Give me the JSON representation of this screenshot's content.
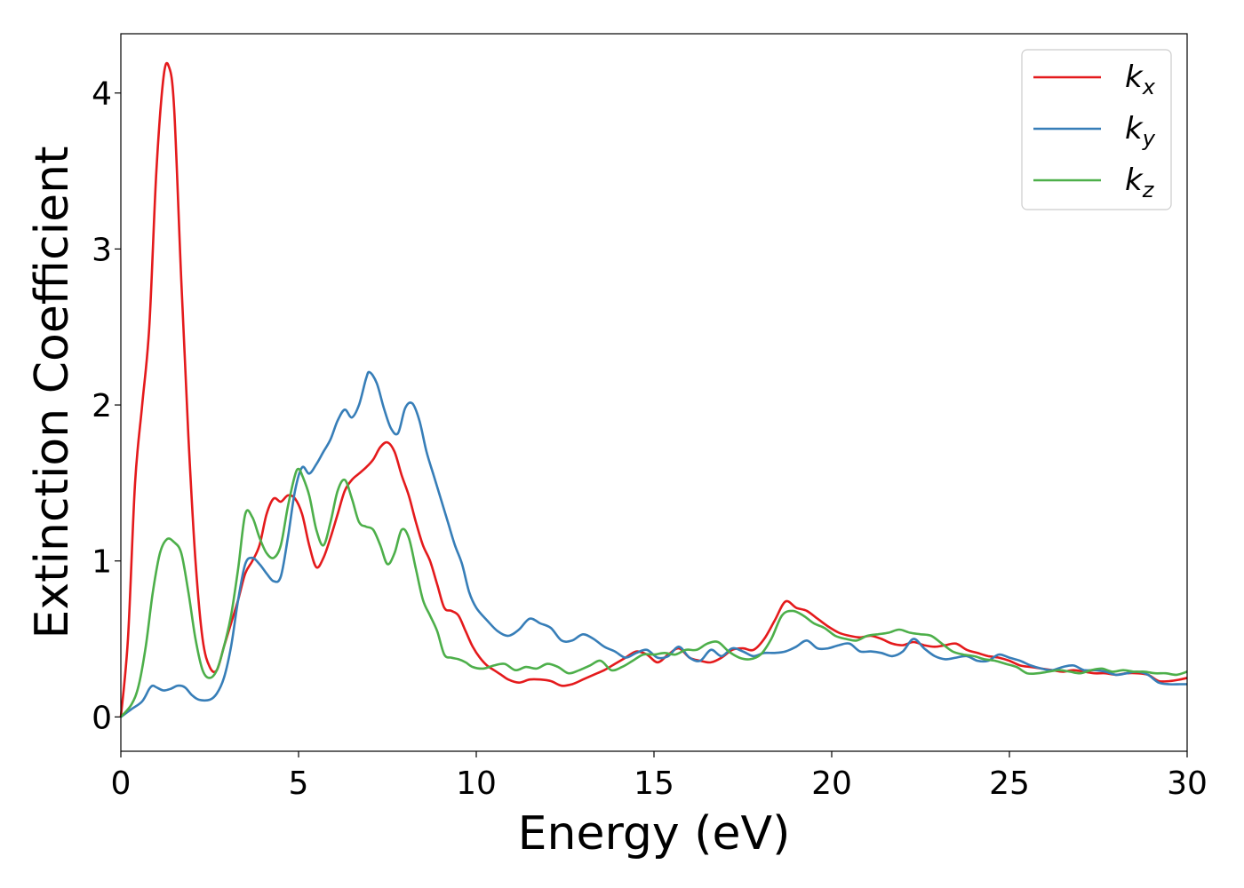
{
  "chart_data": {
    "type": "line",
    "title": "",
    "xlabel": "Energy (eV)",
    "ylabel": "Extinction Coefficient",
    "xlim": [
      0,
      30
    ],
    "ylim": [
      -0.22,
      4.38
    ],
    "xticks": [
      0,
      5,
      10,
      15,
      20,
      25,
      30
    ],
    "yticks": [
      0,
      1,
      2,
      3,
      4
    ],
    "grid": false,
    "legend_position": "top-right",
    "series": [
      {
        "name": "kx",
        "legend_main": "k",
        "legend_sub": "x",
        "color": "#e41a1c",
        "x": [
          0,
          0.2,
          0.4,
          0.6,
          0.8,
          1.0,
          1.2,
          1.35,
          1.5,
          1.7,
          1.9,
          2.1,
          2.3,
          2.5,
          2.7,
          2.9,
          3.1,
          3.3,
          3.5,
          3.7,
          3.9,
          4.1,
          4.3,
          4.5,
          4.7,
          4.9,
          5.1,
          5.3,
          5.5,
          5.7,
          5.9,
          6.1,
          6.3,
          6.5,
          6.7,
          6.9,
          7.1,
          7.3,
          7.5,
          7.7,
          7.9,
          8.1,
          8.3,
          8.5,
          8.7,
          8.9,
          9.1,
          9.3,
          9.5,
          9.7,
          9.9,
          10.1,
          10.3,
          10.5,
          10.7,
          10.9,
          11.2,
          11.5,
          11.8,
          12.1,
          12.4,
          12.7,
          13.0,
          13.3,
          13.6,
          13.9,
          14.2,
          14.5,
          14.8,
          15.1,
          15.4,
          15.7,
          16.0,
          16.3,
          16.6,
          16.9,
          17.2,
          17.5,
          17.8,
          18.1,
          18.4,
          18.7,
          19.0,
          19.3,
          19.6,
          19.9,
          20.2,
          20.5,
          20.8,
          21.1,
          21.4,
          21.7,
          22.0,
          22.3,
          22.6,
          22.9,
          23.2,
          23.5,
          23.8,
          24.1,
          24.4,
          24.7,
          25.0,
          25.3,
          25.6,
          25.9,
          26.2,
          26.5,
          26.8,
          27.1,
          27.4,
          27.7,
          28.0,
          28.3,
          28.6,
          28.9,
          29.2,
          29.5,
          29.8,
          30.0
        ],
        "values": [
          0.0,
          0.5,
          1.5,
          2.0,
          2.5,
          3.5,
          4.1,
          4.17,
          3.9,
          2.8,
          1.8,
          1.0,
          0.5,
          0.32,
          0.3,
          0.45,
          0.6,
          0.75,
          0.92,
          1.0,
          1.1,
          1.3,
          1.4,
          1.38,
          1.42,
          1.4,
          1.3,
          1.1,
          0.96,
          1.02,
          1.15,
          1.3,
          1.45,
          1.52,
          1.56,
          1.6,
          1.65,
          1.73,
          1.76,
          1.7,
          1.55,
          1.42,
          1.25,
          1.1,
          1.0,
          0.85,
          0.7,
          0.68,
          0.65,
          0.55,
          0.45,
          0.38,
          0.33,
          0.3,
          0.27,
          0.24,
          0.22,
          0.24,
          0.24,
          0.23,
          0.2,
          0.21,
          0.24,
          0.27,
          0.3,
          0.34,
          0.38,
          0.42,
          0.4,
          0.35,
          0.4,
          0.44,
          0.38,
          0.36,
          0.35,
          0.38,
          0.43,
          0.44,
          0.43,
          0.5,
          0.62,
          0.74,
          0.7,
          0.68,
          0.63,
          0.58,
          0.54,
          0.52,
          0.51,
          0.52,
          0.5,
          0.47,
          0.46,
          0.48,
          0.46,
          0.45,
          0.46,
          0.47,
          0.43,
          0.41,
          0.39,
          0.38,
          0.36,
          0.33,
          0.32,
          0.31,
          0.3,
          0.29,
          0.3,
          0.29,
          0.28,
          0.28,
          0.27,
          0.28,
          0.28,
          0.27,
          0.23,
          0.23,
          0.24,
          0.25
        ]
      },
      {
        "name": "ky",
        "legend_main": "k",
        "legend_sub": "y",
        "color": "#377eb8",
        "x": [
          0,
          0.3,
          0.6,
          0.8,
          0.9,
          1.0,
          1.2,
          1.4,
          1.6,
          1.8,
          2.0,
          2.2,
          2.5,
          2.7,
          2.9,
          3.1,
          3.3,
          3.5,
          3.7,
          3.9,
          4.1,
          4.3,
          4.5,
          4.7,
          4.9,
          5.1,
          5.3,
          5.5,
          5.7,
          5.9,
          6.1,
          6.3,
          6.5,
          6.7,
          6.9,
          7.0,
          7.2,
          7.4,
          7.6,
          7.8,
          8.0,
          8.2,
          8.4,
          8.6,
          8.8,
          9.0,
          9.2,
          9.4,
          9.6,
          9.8,
          10.0,
          10.3,
          10.6,
          10.9,
          11.2,
          11.5,
          11.8,
          12.1,
          12.4,
          12.7,
          13.0,
          13.3,
          13.6,
          13.9,
          14.2,
          14.5,
          14.8,
          15.1,
          15.4,
          15.7,
          16.0,
          16.3,
          16.6,
          16.9,
          17.2,
          17.5,
          17.8,
          18.1,
          18.4,
          18.7,
          19.0,
          19.3,
          19.6,
          19.9,
          20.2,
          20.5,
          20.8,
          21.1,
          21.4,
          21.7,
          22.0,
          22.3,
          22.6,
          22.9,
          23.2,
          23.5,
          23.8,
          24.1,
          24.4,
          24.7,
          25.0,
          25.3,
          25.6,
          25.9,
          26.2,
          26.5,
          26.8,
          27.1,
          27.4,
          27.7,
          28.0,
          28.3,
          28.6,
          28.9,
          29.2,
          29.5,
          29.8,
          30.0
        ],
        "values": [
          0.0,
          0.05,
          0.1,
          0.18,
          0.2,
          0.19,
          0.17,
          0.18,
          0.2,
          0.19,
          0.14,
          0.11,
          0.11,
          0.15,
          0.25,
          0.45,
          0.75,
          0.98,
          1.02,
          0.98,
          0.92,
          0.87,
          0.9,
          1.15,
          1.45,
          1.6,
          1.56,
          1.62,
          1.7,
          1.78,
          1.9,
          1.97,
          1.92,
          2.0,
          2.17,
          2.21,
          2.14,
          1.98,
          1.85,
          1.82,
          1.98,
          2.01,
          1.9,
          1.7,
          1.55,
          1.4,
          1.25,
          1.1,
          0.98,
          0.8,
          0.7,
          0.62,
          0.55,
          0.52,
          0.56,
          0.63,
          0.6,
          0.57,
          0.49,
          0.49,
          0.53,
          0.5,
          0.45,
          0.42,
          0.38,
          0.41,
          0.43,
          0.38,
          0.39,
          0.45,
          0.38,
          0.36,
          0.43,
          0.39,
          0.44,
          0.42,
          0.39,
          0.41,
          0.41,
          0.42,
          0.45,
          0.49,
          0.44,
          0.44,
          0.46,
          0.47,
          0.42,
          0.42,
          0.41,
          0.39,
          0.42,
          0.5,
          0.44,
          0.39,
          0.37,
          0.38,
          0.39,
          0.36,
          0.36,
          0.4,
          0.38,
          0.36,
          0.33,
          0.31,
          0.3,
          0.32,
          0.33,
          0.3,
          0.3,
          0.29,
          0.27,
          0.28,
          0.29,
          0.27,
          0.22,
          0.21,
          0.21,
          0.21
        ]
      },
      {
        "name": "kz",
        "legend_main": "k",
        "legend_sub": "z",
        "color": "#4daf4a",
        "x": [
          0,
          0.3,
          0.5,
          0.7,
          0.9,
          1.1,
          1.3,
          1.5,
          1.7,
          1.9,
          2.1,
          2.3,
          2.5,
          2.7,
          2.9,
          3.1,
          3.3,
          3.5,
          3.7,
          3.9,
          4.1,
          4.3,
          4.5,
          4.7,
          4.9,
          5.0,
          5.1,
          5.3,
          5.5,
          5.7,
          5.9,
          6.1,
          6.3,
          6.5,
          6.7,
          6.9,
          7.1,
          7.3,
          7.5,
          7.7,
          7.9,
          8.1,
          8.3,
          8.5,
          8.7,
          8.9,
          9.1,
          9.3,
          9.5,
          9.7,
          9.9,
          10.2,
          10.5,
          10.8,
          11.1,
          11.4,
          11.7,
          12.0,
          12.3,
          12.6,
          12.9,
          13.2,
          13.5,
          13.8,
          14.1,
          14.4,
          14.7,
          15.0,
          15.3,
          15.6,
          15.9,
          16.2,
          16.5,
          16.8,
          17.1,
          17.4,
          17.7,
          18.0,
          18.3,
          18.6,
          18.9,
          19.2,
          19.5,
          19.8,
          20.1,
          20.4,
          20.7,
          21.0,
          21.3,
          21.6,
          21.9,
          22.2,
          22.5,
          22.8,
          23.1,
          23.4,
          23.7,
          24.0,
          24.3,
          24.6,
          24.9,
          25.2,
          25.5,
          25.8,
          26.1,
          26.4,
          26.7,
          27.0,
          27.3,
          27.6,
          27.9,
          28.2,
          28.5,
          28.8,
          29.1,
          29.4,
          29.7,
          30.0
        ],
        "values": [
          0.0,
          0.08,
          0.2,
          0.45,
          0.8,
          1.05,
          1.14,
          1.12,
          1.05,
          0.8,
          0.5,
          0.3,
          0.25,
          0.3,
          0.45,
          0.65,
          0.95,
          1.3,
          1.28,
          1.15,
          1.05,
          1.02,
          1.1,
          1.35,
          1.55,
          1.59,
          1.55,
          1.42,
          1.2,
          1.1,
          1.25,
          1.45,
          1.52,
          1.4,
          1.25,
          1.22,
          1.2,
          1.1,
          0.98,
          1.05,
          1.2,
          1.15,
          0.95,
          0.75,
          0.65,
          0.55,
          0.4,
          0.38,
          0.37,
          0.35,
          0.32,
          0.31,
          0.33,
          0.34,
          0.3,
          0.32,
          0.31,
          0.34,
          0.32,
          0.28,
          0.3,
          0.33,
          0.36,
          0.3,
          0.32,
          0.36,
          0.4,
          0.4,
          0.41,
          0.4,
          0.43,
          0.43,
          0.47,
          0.48,
          0.42,
          0.38,
          0.37,
          0.4,
          0.5,
          0.65,
          0.68,
          0.65,
          0.6,
          0.57,
          0.52,
          0.5,
          0.49,
          0.52,
          0.53,
          0.54,
          0.56,
          0.54,
          0.53,
          0.52,
          0.47,
          0.42,
          0.4,
          0.39,
          0.37,
          0.36,
          0.34,
          0.32,
          0.28,
          0.28,
          0.29,
          0.3,
          0.29,
          0.28,
          0.3,
          0.31,
          0.29,
          0.3,
          0.29,
          0.29,
          0.28,
          0.28,
          0.27,
          0.29
        ]
      }
    ]
  }
}
